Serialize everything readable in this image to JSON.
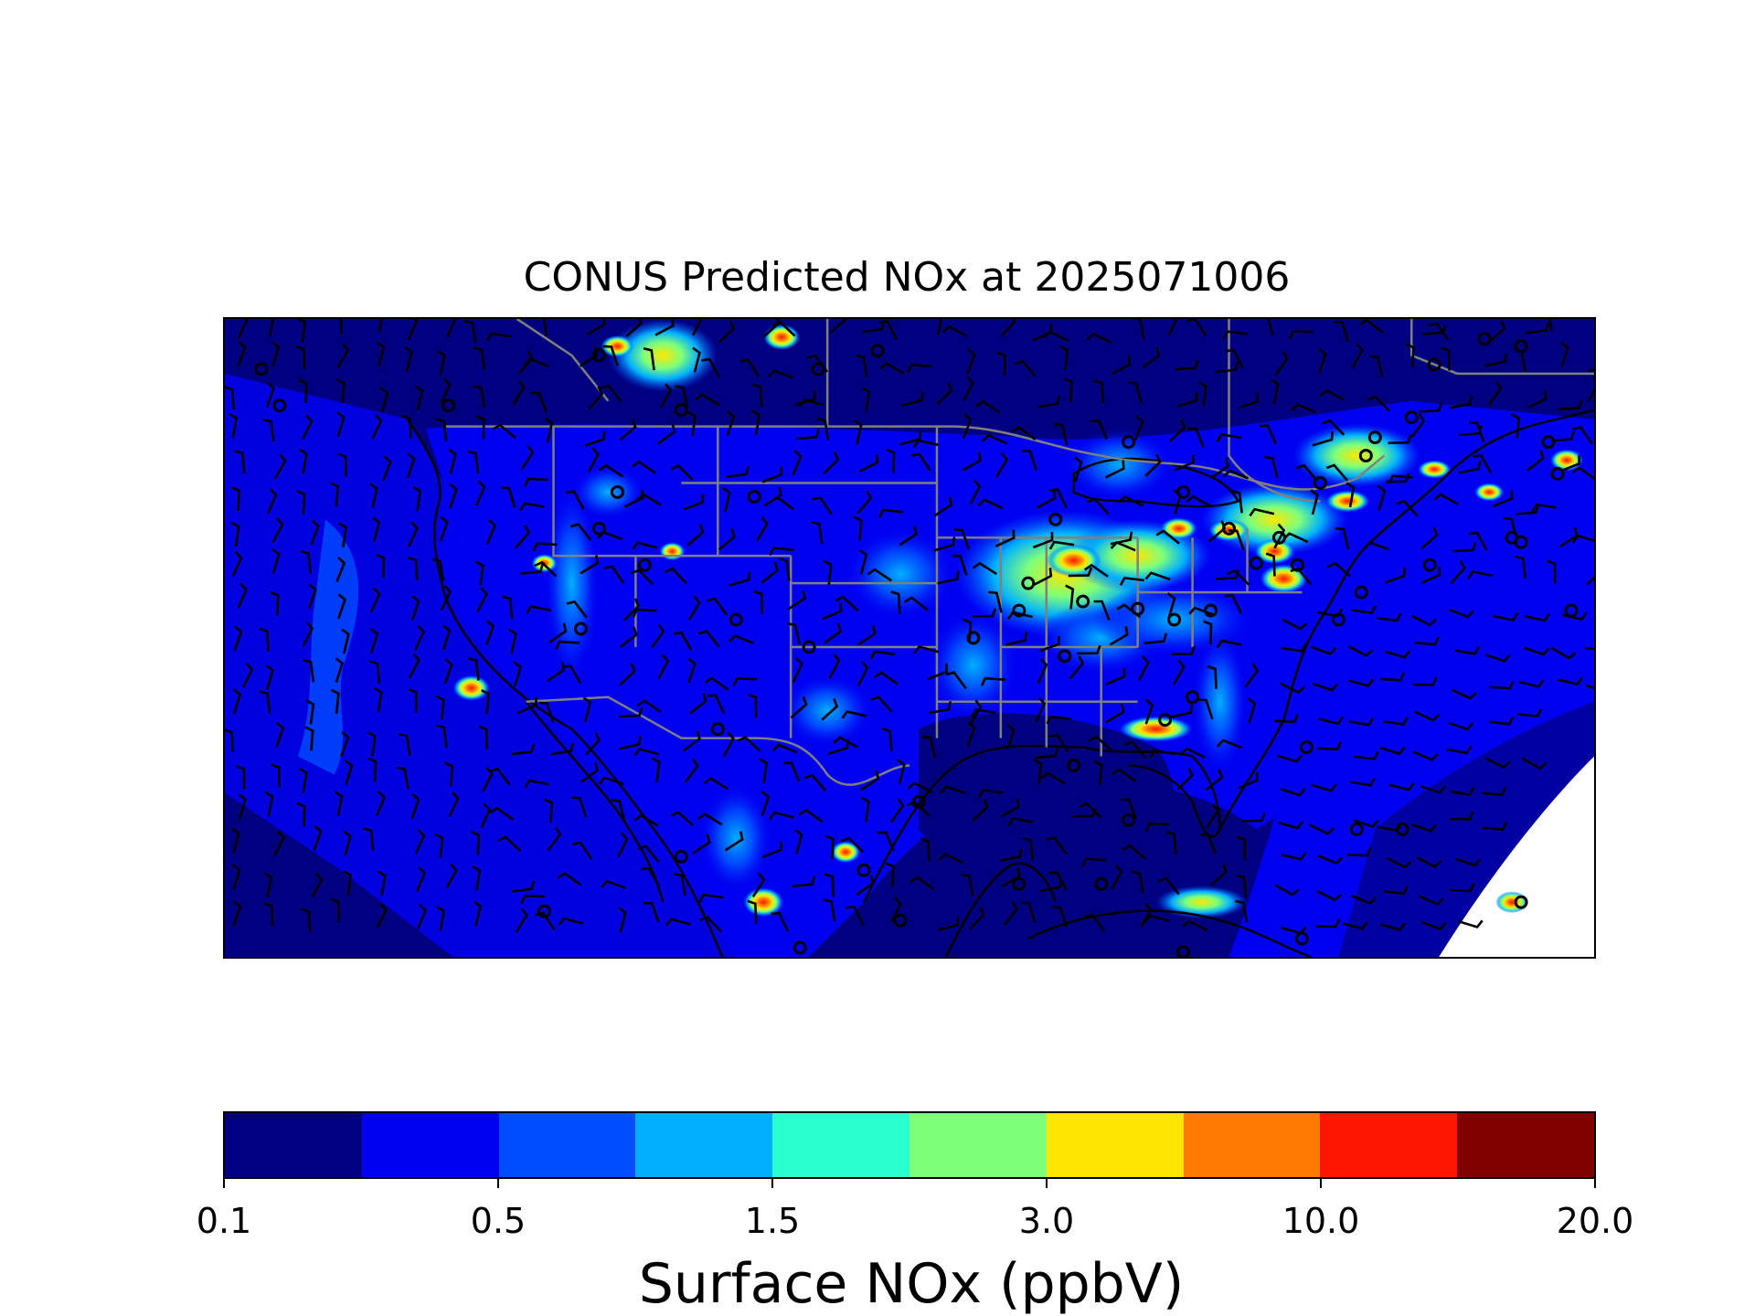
{
  "title": "CONUS Predicted NOx at 2025071006",
  "colorbar": {
    "label": "Surface NOx (ppbV)",
    "colors": [
      "#000080",
      "#0000f1",
      "#004cff",
      "#00b0ff",
      "#29ffce",
      "#7dff7a",
      "#ffe600",
      "#ff7a00",
      "#ff1600",
      "#800000"
    ],
    "ticks": [
      "0.1",
      "0.5",
      "1.5",
      "3.0",
      "10.0",
      "20.0"
    ],
    "tick_index": [
      0,
      2,
      4,
      6,
      8,
      10
    ]
  },
  "map": {
    "layers": [
      "surface-nox-field",
      "coastlines",
      "state-borders",
      "wind-barbs",
      "station-markers"
    ],
    "colors": {
      "border": "#808080",
      "coast": "#000000",
      "barb": "#000000",
      "station": "#000000",
      "nodata": "#ffffff"
    }
  }
}
